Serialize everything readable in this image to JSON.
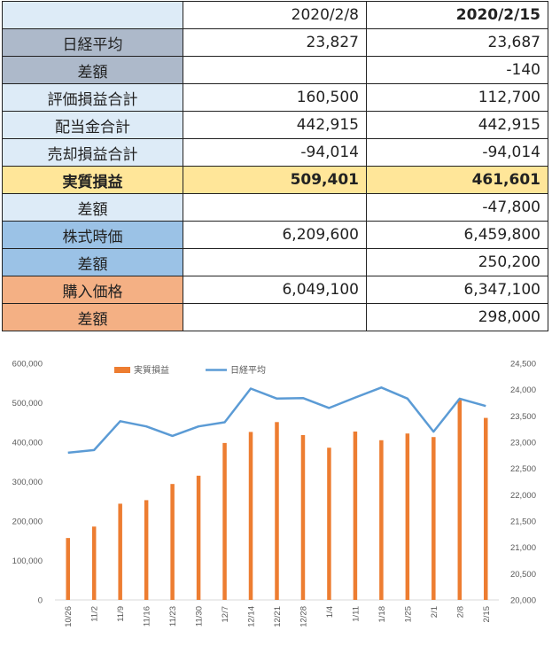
{
  "table": {
    "header": {
      "label": "",
      "col1": "2020/2/8",
      "col2": "2020/2/15"
    },
    "rows": [
      {
        "label": "日経平均",
        "v1": "23,827",
        "v2": "23,687",
        "bg": "#adb9ca"
      },
      {
        "label": "差額",
        "v1": "",
        "v2": "-140",
        "bg": "#adb9ca",
        "v2neg": true
      },
      {
        "label": "評価損益合計",
        "v1": "160,500",
        "v2": "112,700",
        "bg": "#ddebf7"
      },
      {
        "label": "配当金合計",
        "v1": "442,915",
        "v2": "442,915",
        "bg": "#ddebf7"
      },
      {
        "label": "売却損益合計",
        "v1": "-94,014",
        "v2": "-94,014",
        "bg": "#ddebf7",
        "v1neg": true,
        "v2neg": true
      },
      {
        "label": "実質損益",
        "v1": "509,401",
        "v2": "461,601",
        "bg": "#ffe699",
        "rowbg": "#ffe699",
        "bold": true
      },
      {
        "label": "差額",
        "v1": "",
        "v2": "-47,800",
        "bg": "#ddebf7",
        "v2neg": true
      },
      {
        "label": "株式時価",
        "v1": "6,209,600",
        "v2": "6,459,800",
        "bg": "#9bc2e6"
      },
      {
        "label": "差額",
        "v1": "",
        "v2": "250,200",
        "bg": "#9bc2e6"
      },
      {
        "label": "購入価格",
        "v1": "6,049,100",
        "v2": "6,347,100",
        "bg": "#f4b084"
      },
      {
        "label": "差額",
        "v1": "",
        "v2": "298,000",
        "bg": "#f4b084"
      }
    ]
  },
  "chart_data": {
    "type": "bar",
    "categories": [
      "10/26",
      "11/2",
      "11/9",
      "11/16",
      "11/23",
      "11/30",
      "12/7",
      "12/14",
      "12/21",
      "12/28",
      "1/4",
      "1/11",
      "1/18",
      "1/25",
      "2/1",
      "2/8",
      "2/15"
    ],
    "series": [
      {
        "name": "実質損益",
        "type": "bar",
        "axis": "left",
        "color": "#ed7d31",
        "values": [
          157000,
          186000,
          244000,
          253000,
          294000,
          315000,
          398000,
          426000,
          451000,
          418000,
          386000,
          427000,
          405000,
          422000,
          413000,
          509401,
          461601
        ]
      },
      {
        "name": "日経平均",
        "type": "line",
        "axis": "right",
        "color": "#5b9bd5",
        "values": [
          22800,
          22850,
          23400,
          23300,
          23120,
          23300,
          23380,
          24020,
          23830,
          23840,
          23650,
          23850,
          24040,
          23830,
          23200,
          23827,
          23687
        ]
      }
    ],
    "ylim": [
      0,
      600000
    ],
    "y_ticks": [
      "0",
      "100,000",
      "200,000",
      "300,000",
      "400,000",
      "500,000",
      "600,000"
    ],
    "y2lim": [
      20000,
      24500
    ],
    "y2_ticks": [
      "20,000",
      "20,500",
      "21,000",
      "21,500",
      "22,000",
      "22,500",
      "23,000",
      "23,500",
      "24,000",
      "24,500"
    ],
    "legend": "top",
    "grid": false
  }
}
